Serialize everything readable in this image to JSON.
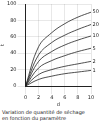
{
  "chart_data": {
    "type": "line",
    "x_label": "d",
    "y_label": "t",
    "annotations": [
      "Variation de quantité de séchage",
      "en fonction du paramètre"
    ],
    "x": [
      0,
      2,
      4,
      6,
      8,
      10
    ],
    "series": [
      {
        "name": "1",
        "color": "#222222",
        "values": [
          0,
          8,
          12,
          15,
          17,
          19
        ]
      },
      {
        "name": "2",
        "color": "#222222",
        "values": [
          0,
          14,
          20,
          24,
          27,
          30
        ]
      },
      {
        "name": "5",
        "color": "#222222",
        "values": [
          0,
          22,
          31,
          37,
          42,
          46
        ]
      },
      {
        "name": "10",
        "color": "#222222",
        "values": [
          0,
          30,
          42,
          50,
          56,
          61
        ]
      },
      {
        "name": "20",
        "color": "#222222",
        "values": [
          0,
          38,
          53,
          62,
          69,
          75
        ]
      },
      {
        "name": "50",
        "color": "#222222",
        "values": [
          0,
          48,
          65,
          76,
          84,
          90
        ]
      }
    ],
    "xlim": [
      0,
      10
    ],
    "xticks": [
      0,
      2,
      4,
      6,
      8,
      10
    ],
    "ylim": [
      0,
      100
    ],
    "yticks": [
      0,
      20,
      40,
      60,
      80,
      100
    ],
    "grid": true
  }
}
